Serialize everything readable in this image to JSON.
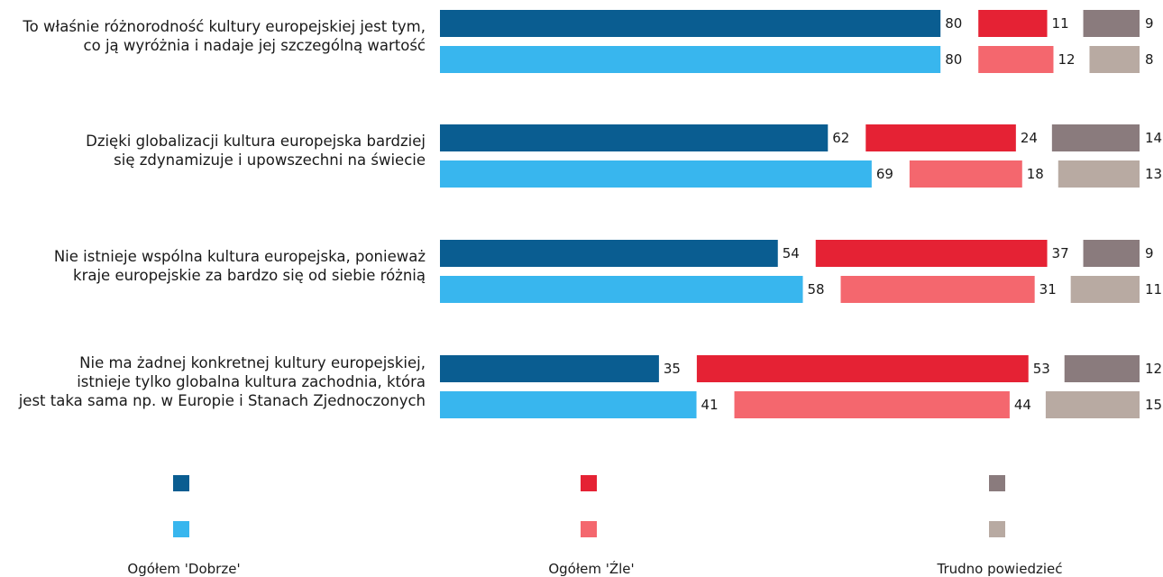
{
  "colors": {
    "good_a": "#0a5d91",
    "good_b": "#38b6ee",
    "bad_a": "#e52234",
    "bad_b": "#f4676e",
    "dk_a": "#8a7b7d",
    "dk_b": "#b8aaa2"
  },
  "legend": [
    {
      "label": "Ogółem 'Dobrze'"
    },
    {
      "label": "Ogółem 'Źle'"
    },
    {
      "label": "Trudno powiedzieć"
    }
  ],
  "chart_data": {
    "type": "bar",
    "orientation": "horizontal",
    "stacked": "segmented",
    "categories": [
      "To właśnie różnorodność kultury europejskiej jest tym, co ją wyróżnia i nadaje jej szczególną wartość",
      "Dzięki globalizacji kultura europejska bardziej się zdynamizuje i upowszechni na świecie",
      "Nie istnieje wspólna kultura europejska, ponieważ kraje europejskie za bardzo się od siebie różnią",
      "Nie ma żadnej konkretnej kultury europejskiej, istnieje tylko globalna kultura zachodnia, która jest taka sama np. w Europie i Stanach Zjednoczonych"
    ],
    "category_lines": [
      [
        "To właśnie różnorodność kultury europejskiej jest tym,",
        "co ją wyróżnia i nadaje jej szczególną wartość"
      ],
      [
        "Dzięki globalizacji kultura europejska bardziej",
        "się zdynamizuje i upowszechni na świecie"
      ],
      [
        "Nie istnieje wspólna kultura europejska, ponieważ",
        "kraje europejskie za bardzo się od siebie różnią"
      ],
      [
        "Nie ma żadnej konkretnej kultury europejskiej,",
        "istnieje tylko globalna kultura zachodnia, która",
        "jest taka sama np. w Europie i Stanach Zjednoczonych"
      ]
    ],
    "series": [
      {
        "name": "Ogółem 'Dobrze'",
        "values_a": [
          80,
          62,
          54,
          35
        ],
        "values_b": [
          80,
          69,
          58,
          41
        ]
      },
      {
        "name": "Ogółem 'Źle'",
        "values_a": [
          11,
          24,
          37,
          53
        ],
        "values_b": [
          12,
          18,
          31,
          44
        ]
      },
      {
        "name": "Trudno powiedzieć",
        "values_a": [
          9,
          14,
          9,
          12
        ],
        "values_b": [
          8,
          13,
          11,
          15
        ]
      }
    ],
    "xlim": [
      0,
      100
    ]
  }
}
